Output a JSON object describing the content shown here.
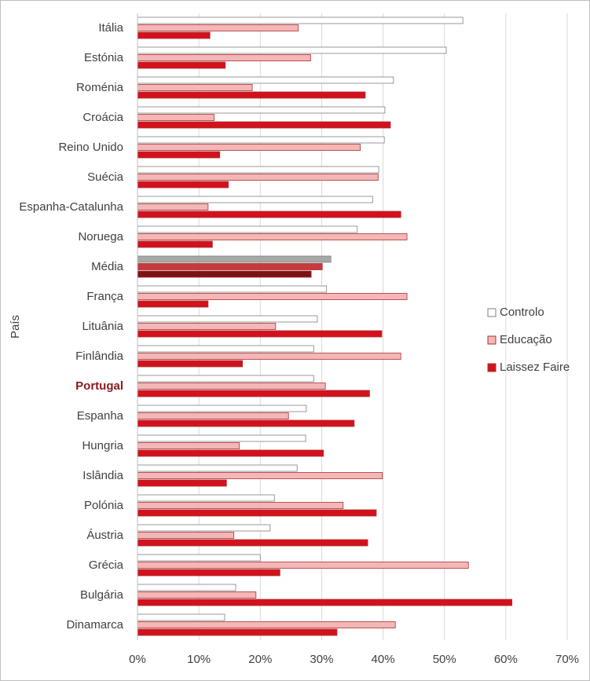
{
  "chart_data": {
    "type": "hbar",
    "y_label": "País",
    "categories": [
      "Itália",
      "Estónia",
      "Roménia",
      "Croácia",
      "Reino Unido",
      "Suécia",
      "Espanha-Catalunha",
      "Noruega",
      "Média",
      "França",
      "Lituânia",
      "Finlândia",
      "Portugal",
      "Espanha",
      "Hungria",
      "Islândia",
      "Polónia",
      "Áustria",
      "Grécia",
      "Bulgária",
      "Dinamarca"
    ],
    "series": [
      {
        "name": "Controlo",
        "color": "#ffffff",
        "values": [
          53.0,
          50.3,
          41.7,
          40.3,
          40.2,
          39.3,
          38.3,
          35.8,
          31.5,
          30.8,
          29.3,
          28.7,
          28.7,
          27.5,
          27.4,
          26.0,
          22.3,
          21.6,
          20.0,
          16.0,
          14.2
        ]
      },
      {
        "name": "Educação",
        "color": "#f4b6b6",
        "values": [
          26.2,
          28.2,
          18.7,
          12.5,
          36.3,
          39.2,
          11.5,
          43.9,
          30.1,
          43.9,
          22.5,
          42.9,
          30.6,
          24.6,
          16.6,
          39.9,
          33.5,
          15.7,
          53.9,
          19.3,
          42.0
        ]
      },
      {
        "name": "Laissez Faire",
        "color": "#d3111c",
        "values": [
          11.8,
          14.3,
          37.1,
          41.2,
          13.4,
          14.8,
          42.9,
          12.2,
          28.3,
          11.5,
          39.8,
          17.1,
          37.8,
          35.3,
          30.3,
          14.5,
          38.9,
          37.5,
          23.2,
          61.0,
          32.5
        ]
      }
    ],
    "average_index": 8,
    "average_colors": [
      "#a8a8a8",
      "#c8383c",
      "#7a1218"
    ],
    "highlight_index": 12,
    "xlim": [
      0,
      70
    ],
    "xticks": [
      {
        "value": 0,
        "label": "0%"
      },
      {
        "value": 10,
        "label": "10%"
      },
      {
        "value": 20,
        "label": "20%"
      },
      {
        "value": 30,
        "label": "30%"
      },
      {
        "value": 40,
        "label": "40%"
      },
      {
        "value": 50,
        "label": "50%"
      },
      {
        "value": 60,
        "label": "60%"
      },
      {
        "value": 70,
        "label": "70%"
      }
    ],
    "grid": true,
    "legend": "right"
  }
}
